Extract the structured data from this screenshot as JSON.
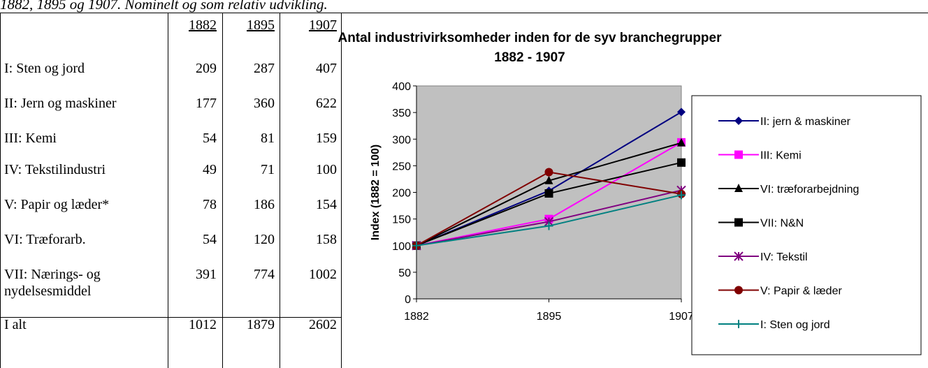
{
  "caption": "1882, 1895 og 1907. Nominelt og som relativ udvikling.",
  "table": {
    "header": [
      "1882",
      "1895",
      "1907"
    ],
    "rows": [
      [
        "I: Sten og jord",
        209,
        287,
        407
      ],
      [
        "II: Jern og maskiner",
        177,
        360,
        622
      ],
      [
        "III: Kemi",
        54,
        81,
        159
      ],
      [
        "IV: Tekstilindustri",
        49,
        71,
        100
      ],
      [
        "V: Papir og læder*",
        78,
        186,
        154
      ],
      [
        "VI: Træforarb.",
        54,
        120,
        158
      ],
      [
        "VII: Nærings- og nydelsesmiddel",
        391,
        774,
        1002
      ],
      [
        "I alt",
        1012,
        1879,
        2602
      ]
    ]
  },
  "chart_data": {
    "type": "line",
    "title": "Antal industrivirksomheder inden for de syv branchegrupper 1882 - 1907",
    "y_label": "Index (1882 = 100)",
    "categories": [
      "1882",
      "1895",
      "1907"
    ],
    "ylim": [
      0,
      400
    ],
    "yticks": [
      0,
      50,
      100,
      150,
      200,
      250,
      300,
      350,
      400
    ],
    "background": "#c0c0c0",
    "series": [
      {
        "name": "II:  jern & maskiner",
        "color": "#000080",
        "marker": "diamond",
        "values": [
          100,
          203,
          351
        ]
      },
      {
        "name": "III:  Kemi",
        "color": "#ff00ff",
        "marker": "square",
        "values": [
          100,
          150,
          294
        ]
      },
      {
        "name": "VI:  træforarbejdning",
        "color": "#000000",
        "marker": "triangle",
        "values": [
          100,
          222,
          293
        ]
      },
      {
        "name": "VII:  N&N",
        "color": "#000000",
        "marker": "square",
        "values": [
          100,
          198,
          256
        ]
      },
      {
        "name": "IV:  Tekstil",
        "color": "#800080",
        "marker": "star",
        "values": [
          100,
          145,
          204
        ]
      },
      {
        "name": "V:  Papir & læder",
        "color": "#800000",
        "marker": "circle",
        "values": [
          100,
          238,
          197
        ]
      },
      {
        "name": "I:  Sten og jord",
        "color": "#008080",
        "marker": "plus",
        "values": [
          100,
          137,
          195
        ]
      }
    ]
  }
}
